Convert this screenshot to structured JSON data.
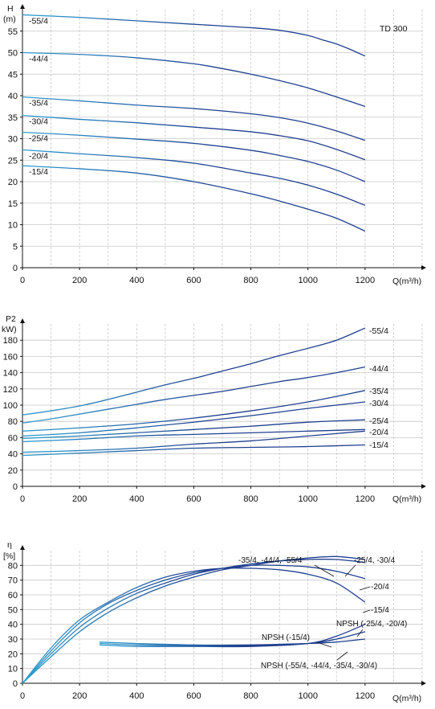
{
  "colors": {
    "curve_dark": "#1f3f8f",
    "curve_light": "#2f9fd0",
    "grid": "#c8c8c8",
    "axis": "#111111"
  },
  "chart_data": [
    {
      "type": "line",
      "title": "TD 300",
      "ylabel": "H",
      "yunit": "(m)",
      "xlabel": "Q(m³/h)",
      "xlim": [
        0,
        1400
      ],
      "ylim": [
        0,
        60
      ],
      "xticks": [
        0,
        200,
        400,
        600,
        800,
        1000,
        1200
      ],
      "yticks": [
        0,
        5,
        10,
        15,
        20,
        25,
        30,
        35,
        40,
        45,
        50,
        55
      ],
      "series": [
        {
          "name": "-55/4",
          "x": [
            0,
            200,
            400,
            600,
            800,
            900,
            1000,
            1050,
            1100,
            1150,
            1200
          ],
          "y": [
            58.8,
            58.2,
            57.4,
            56.6,
            55.8,
            55.2,
            54.0,
            53.0,
            52.0,
            50.7,
            49.2
          ]
        },
        {
          "name": "-44/4",
          "x": [
            0,
            200,
            400,
            600,
            700,
            800,
            900,
            1000,
            1100,
            1200
          ],
          "y": [
            50.0,
            49.6,
            48.8,
            47.4,
            46.3,
            45.0,
            43.5,
            41.8,
            39.7,
            37.5
          ]
        },
        {
          "name": "-35/4",
          "x": [
            0,
            200,
            400,
            600,
            800,
            900,
            1000,
            1100,
            1200
          ],
          "y": [
            39.7,
            38.8,
            37.8,
            37.0,
            35.8,
            34.9,
            33.6,
            31.8,
            29.6
          ]
        },
        {
          "name": "-30/4",
          "x": [
            0,
            200,
            400,
            600,
            800,
            900,
            1000,
            1100,
            1200
          ],
          "y": [
            35.4,
            34.5,
            33.7,
            32.7,
            31.6,
            30.7,
            29.5,
            27.5,
            25.1
          ]
        },
        {
          "name": "-25/4",
          "x": [
            0,
            200,
            400,
            600,
            800,
            900,
            1000,
            1100,
            1200
          ],
          "y": [
            31.5,
            30.8,
            29.9,
            28.9,
            27.3,
            26.1,
            24.7,
            22.7,
            20.0
          ]
        },
        {
          "name": "-20/4",
          "x": [
            0,
            200,
            400,
            600,
            800,
            900,
            1000,
            1100,
            1200
          ],
          "y": [
            27.4,
            26.5,
            25.6,
            24.3,
            22.0,
            20.8,
            19.2,
            17.1,
            14.5
          ]
        },
        {
          "name": "-15/4",
          "x": [
            0,
            200,
            400,
            600,
            800,
            900,
            1000,
            1100,
            1200
          ],
          "y": [
            23.7,
            23.0,
            22.0,
            20.0,
            17.2,
            15.5,
            13.6,
            11.5,
            8.5
          ]
        }
      ]
    },
    {
      "type": "line",
      "ylabel": "P2",
      "yunit": "kW)",
      "xlabel": "Q(m³/h)",
      "xlim": [
        0,
        1400
      ],
      "ylim": [
        0,
        200
      ],
      "xticks": [
        0,
        200,
        400,
        600,
        800,
        1000,
        1200
      ],
      "yticks": [
        0,
        20,
        40,
        60,
        80,
        100,
        120,
        140,
        160,
        180
      ],
      "series": [
        {
          "name": "-55/4",
          "x": [
            0,
            100,
            200,
            300,
            400,
            500,
            600,
            700,
            800,
            900,
            1000,
            1100,
            1200
          ],
          "y": [
            88,
            93,
            99,
            107,
            116,
            125,
            133,
            142,
            151,
            161,
            170,
            180,
            195
          ]
        },
        {
          "name": "-44/4",
          "x": [
            0,
            100,
            200,
            300,
            400,
            500,
            600,
            700,
            800,
            900,
            1000,
            1100,
            1200
          ],
          "y": [
            78,
            83,
            89,
            95,
            101,
            107,
            112,
            117,
            123,
            129,
            134,
            140,
            147
          ]
        },
        {
          "name": "-35/4",
          "x": [
            0,
            200,
            400,
            600,
            800,
            1000,
            1200
          ],
          "y": [
            68,
            72,
            77,
            84,
            93,
            104,
            118
          ]
        },
        {
          "name": "-30/4",
          "x": [
            0,
            200,
            400,
            600,
            800,
            1000,
            1200
          ],
          "y": [
            62,
            66,
            72,
            79,
            87,
            96,
            104
          ]
        },
        {
          "name": "-25/4",
          "x": [
            0,
            200,
            400,
            600,
            800,
            1000,
            1200
          ],
          "y": [
            59,
            62,
            66,
            70,
            74,
            79,
            82
          ]
        },
        {
          "name": "-20/4",
          "x": [
            0,
            200,
            400,
            600,
            800,
            1000,
            1200
          ],
          "y": [
            55,
            58,
            62,
            64,
            66,
            68,
            70
          ]
        },
        {
          "name": "-15/4",
          "x": [
            0,
            200,
            400,
            600,
            800,
            1000,
            1200
          ],
          "y": [
            38,
            41,
            44,
            47,
            48,
            49,
            51
          ]
        },
        {
          "name": "",
          "x": [
            0,
            200,
            400,
            600,
            800,
            1000,
            1200
          ],
          "y": [
            42,
            44,
            47,
            52,
            56,
            62,
            68
          ]
        }
      ]
    },
    {
      "type": "line",
      "ylabel": "η",
      "yunit": "[%]",
      "xlabel": "Q(m³/h)",
      "xlim": [
        0,
        1400
      ],
      "ylim": [
        0,
        90
      ],
      "xticks": [
        0,
        200,
        400,
        600,
        800,
        1000,
        1200
      ],
      "yticks": [
        0,
        10,
        20,
        30,
        40,
        50,
        60,
        70,
        80
      ],
      "series": [
        {
          "name": "e1",
          "x": [
            0,
            100,
            200,
            300,
            400,
            500,
            600,
            700,
            800,
            900,
            1000,
            1100,
            1200
          ],
          "y": [
            0,
            22,
            41,
            54,
            63,
            70,
            75,
            78,
            80,
            80,
            79,
            76,
            71
          ]
        },
        {
          "name": "e2",
          "x": [
            0,
            100,
            200,
            300,
            400,
            500,
            600,
            700,
            800,
            900,
            1000,
            1100,
            1200
          ],
          "y": [
            0,
            24,
            43,
            55,
            65,
            72,
            76,
            78,
            78,
            77,
            74,
            68,
            55
          ]
        },
        {
          "name": "e3",
          "x": [
            0,
            100,
            200,
            300,
            400,
            500,
            600,
            700,
            800,
            900,
            1000,
            1100,
            1200
          ],
          "y": [
            0,
            20,
            38,
            51,
            61,
            68,
            74,
            78,
            81,
            83,
            84,
            84,
            82
          ]
        },
        {
          "name": "e4",
          "x": [
            0,
            100,
            200,
            300,
            400,
            500,
            600,
            700,
            800,
            900,
            1000,
            1100,
            1200
          ],
          "y": [
            0,
            18,
            35,
            48,
            58,
            66,
            72,
            77,
            80,
            83,
            85,
            86,
            84
          ]
        },
        {
          "name": "n1",
          "x": [
            270,
            400,
            600,
            800,
            1000,
            1100,
            1200
          ],
          "y": [
            28,
            27,
            26,
            26,
            27,
            28,
            30
          ]
        },
        {
          "name": "n2",
          "x": [
            270,
            400,
            600,
            800,
            1000,
            1100,
            1200
          ],
          "y": [
            26,
            25,
            25,
            25,
            27,
            32,
            40
          ]
        },
        {
          "name": "n3",
          "x": [
            270,
            400,
            600,
            800,
            1000,
            1100,
            1200
          ],
          "y": [
            27,
            26,
            25.5,
            25.5,
            27,
            30,
            35
          ]
        }
      ],
      "annotations": [
        {
          "text": "-35/4, -44/4, -55/4"
        },
        {
          "text": "-25/4, -30/4"
        },
        {
          "text": "-20/4"
        },
        {
          "text": "-15/4"
        },
        {
          "text": "NPSH (-25/4, -20/4)"
        },
        {
          "text": "NPSH (-15/4)"
        },
        {
          "text": "NPSH (-55/4, -44/4, -35/4, -30/4)"
        }
      ]
    }
  ]
}
